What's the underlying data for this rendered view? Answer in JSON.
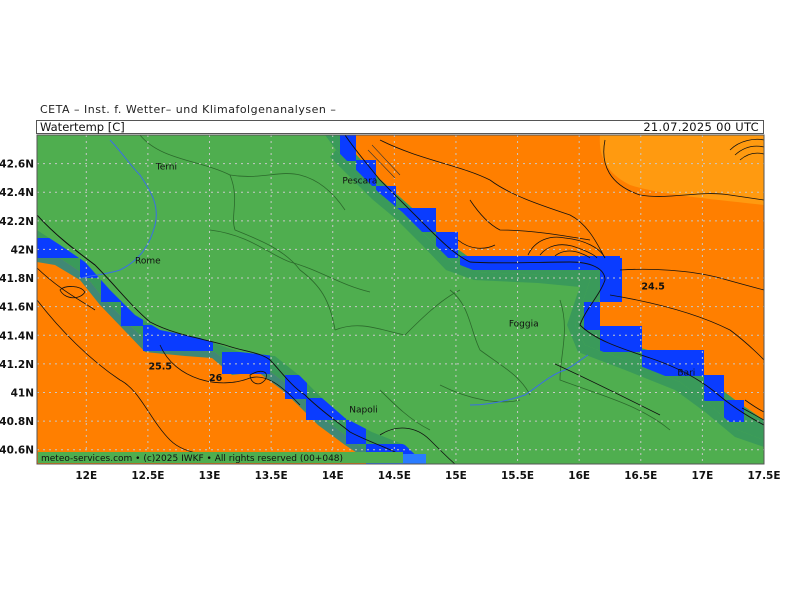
{
  "header": {
    "source": "CETA – Inst. f. Wetter– und Klimafolgenanalysen –",
    "parameter": "Watertemp [C]",
    "datetime": "21.07.2025 00 UTC"
  },
  "map": {
    "lon_range": [
      11.6,
      17.5
    ],
    "lat_range": [
      40.5,
      42.8
    ],
    "lon_ticks": [
      "12E",
      "12.5E",
      "13E",
      "13.5E",
      "14E",
      "14.5E",
      "15E",
      "15.5E",
      "16E",
      "16.5E",
      "17E",
      "17.5E"
    ],
    "lat_ticks": [
      "42.6N",
      "42.4N",
      "42.2N",
      "42N",
      "41.8N",
      "41.6N",
      "41.4N",
      "41.2N",
      "41N",
      "40.8N",
      "40.6N"
    ],
    "cities": [
      {
        "name": "Terni",
        "lon": 12.65,
        "lat": 42.56
      },
      {
        "name": "Pescara",
        "lon": 14.22,
        "lat": 42.46
      },
      {
        "name": "Rome",
        "lon": 12.5,
        "lat": 41.9
      },
      {
        "name": "Foggia",
        "lon": 15.55,
        "lat": 41.46
      },
      {
        "name": "Napoli",
        "lon": 14.25,
        "lat": 40.86
      },
      {
        "name": "Bari",
        "lon": 16.87,
        "lat": 41.12
      }
    ],
    "isotherm_labels": [
      {
        "text": "24.5",
        "lon": 16.6,
        "lat": 41.72
      },
      {
        "text": "25.5",
        "lon": 12.6,
        "lat": 41.16
      },
      {
        "text": "26",
        "lon": 13.05,
        "lat": 41.08
      }
    ],
    "colors": {
      "land": "#4fae4f",
      "coastal_band": "#3a9a5a",
      "sea_warm": "#ff7f00",
      "sea_cool": "#ff9900",
      "cold_pixels": "#0a3cff",
      "cold_pixels_light": "#2a7cff"
    }
  },
  "credit": "meteo-services.com • (c)2025 IWKF • All rights reserved (00+048)"
}
